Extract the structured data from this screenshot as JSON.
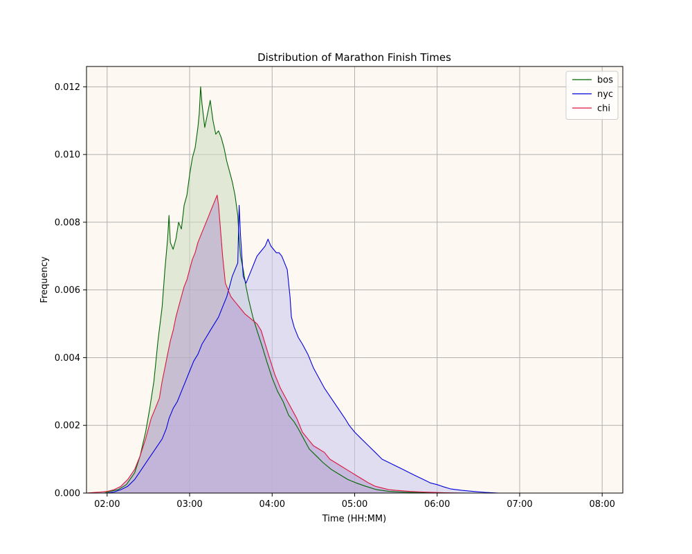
{
  "chart_data": {
    "type": "area",
    "title": "Distribution of Marathon Finish Times",
    "xlabel": "Time (HH:MM)",
    "ylabel": "Frequency",
    "x_unit": "minutes",
    "xlim": [
      105,
      495
    ],
    "ylim": [
      0,
      0.0126
    ],
    "xticks": [
      120,
      180,
      240,
      300,
      360,
      420,
      480
    ],
    "xtick_labels": [
      "02:00",
      "03:00",
      "04:00",
      "05:00",
      "06:00",
      "07:00",
      "08:00"
    ],
    "yticks": [
      0.0,
      0.002,
      0.004,
      0.006,
      0.008,
      0.01,
      0.012
    ],
    "ytick_labels": [
      "0.000",
      "0.002",
      "0.004",
      "0.006",
      "0.008",
      "0.010",
      "0.012"
    ],
    "grid": true,
    "legend_position": "top-right",
    "plot_background": "#fdf8f1",
    "series": [
      {
        "name": "bos",
        "color": "#006400",
        "fill": "#cadbbf",
        "points": [
          [
            105,
            0
          ],
          [
            118,
            0
          ],
          [
            122,
            5e-05
          ],
          [
            128,
            0.0001
          ],
          [
            134,
            0.00025
          ],
          [
            140,
            0.0006
          ],
          [
            144,
            0.0011
          ],
          [
            148,
            0.0018
          ],
          [
            151,
            0.0025
          ],
          [
            154,
            0.0033
          ],
          [
            157,
            0.0045
          ],
          [
            160,
            0.0055
          ],
          [
            162,
            0.0066
          ],
          [
            164,
            0.0075
          ],
          [
            165,
            0.0082
          ],
          [
            166,
            0.0074
          ],
          [
            168,
            0.0072
          ],
          [
            170,
            0.0075
          ],
          [
            172,
            0.008
          ],
          [
            174,
            0.0078
          ],
          [
            176,
            0.0085
          ],
          [
            178,
            0.0088
          ],
          [
            180,
            0.0094
          ],
          [
            182,
            0.0099
          ],
          [
            184,
            0.0102
          ],
          [
            186,
            0.0108
          ],
          [
            187,
            0.0112
          ],
          [
            188,
            0.012
          ],
          [
            189,
            0.0115
          ],
          [
            191,
            0.0108
          ],
          [
            193,
            0.0112
          ],
          [
            195,
            0.0116
          ],
          [
            197,
            0.011
          ],
          [
            199,
            0.0106
          ],
          [
            201,
            0.0107
          ],
          [
            203,
            0.0105
          ],
          [
            205,
            0.0102
          ],
          [
            207,
            0.0098
          ],
          [
            209,
            0.0095
          ],
          [
            211,
            0.0092
          ],
          [
            213,
            0.0088
          ],
          [
            215,
            0.0082
          ],
          [
            216,
            0.0075
          ],
          [
            217,
            0.007
          ],
          [
            219,
            0.0066
          ],
          [
            221,
            0.0061
          ],
          [
            223,
            0.0057
          ],
          [
            226,
            0.0052
          ],
          [
            229,
            0.0048
          ],
          [
            233,
            0.0043
          ],
          [
            236,
            0.0039
          ],
          [
            240,
            0.0034
          ],
          [
            244,
            0.003
          ],
          [
            248,
            0.0027
          ],
          [
            252,
            0.0023
          ],
          [
            256,
            0.0021
          ],
          [
            259,
            0.0019
          ],
          [
            263,
            0.0016
          ],
          [
            267,
            0.0013
          ],
          [
            272,
            0.0011
          ],
          [
            277,
            0.0009
          ],
          [
            283,
            0.0007
          ],
          [
            289,
            0.00055
          ],
          [
            295,
            0.0004
          ],
          [
            301,
            0.0003
          ],
          [
            308,
            0.0002
          ],
          [
            316,
            0.0001
          ],
          [
            325,
            5e-05
          ],
          [
            340,
            2e-05
          ],
          [
            360,
            0
          ],
          [
            495,
            0
          ]
        ]
      },
      {
        "name": "nyc",
        "color": "#0000dd",
        "fill": "#c9c6f1",
        "points": [
          [
            105,
            0
          ],
          [
            120,
            0
          ],
          [
            125,
            3e-05
          ],
          [
            130,
            0.0001
          ],
          [
            135,
            0.0002
          ],
          [
            140,
            0.0004
          ],
          [
            145,
            0.0007
          ],
          [
            150,
            0.001
          ],
          [
            155,
            0.0013
          ],
          [
            160,
            0.0016
          ],
          [
            163,
            0.0019
          ],
          [
            165,
            0.0022
          ],
          [
            168,
            0.0025
          ],
          [
            171,
            0.0027
          ],
          [
            174,
            0.003
          ],
          [
            177,
            0.0033
          ],
          [
            180,
            0.0036
          ],
          [
            183,
            0.0039
          ],
          [
            186,
            0.0041
          ],
          [
            189,
            0.0044
          ],
          [
            192,
            0.0046
          ],
          [
            195,
            0.0048
          ],
          [
            198,
            0.005
          ],
          [
            201,
            0.0052
          ],
          [
            204,
            0.0055
          ],
          [
            207,
            0.0058
          ],
          [
            209,
            0.0061
          ],
          [
            211,
            0.0064
          ],
          [
            213,
            0.0066
          ],
          [
            215,
            0.0068
          ],
          [
            216,
            0.0085
          ],
          [
            217,
            0.0076
          ],
          [
            219,
            0.0064
          ],
          [
            221,
            0.0062
          ],
          [
            223,
            0.0064
          ],
          [
            225,
            0.0066
          ],
          [
            227,
            0.0068
          ],
          [
            229,
            0.007
          ],
          [
            231,
            0.0071
          ],
          [
            233,
            0.0072
          ],
          [
            235,
            0.0073
          ],
          [
            237,
            0.0075
          ],
          [
            239,
            0.0073
          ],
          [
            241,
            0.0072
          ],
          [
            243,
            0.0071
          ],
          [
            245,
            0.0071
          ],
          [
            247,
            0.007
          ],
          [
            249,
            0.0068
          ],
          [
            251,
            0.0066
          ],
          [
            252,
            0.0062
          ],
          [
            253,
            0.0058
          ],
          [
            254,
            0.0052
          ],
          [
            256,
            0.0049
          ],
          [
            259,
            0.0046
          ],
          [
            262,
            0.0044
          ],
          [
            266,
            0.0041
          ],
          [
            270,
            0.0037
          ],
          [
            274,
            0.0034
          ],
          [
            278,
            0.0031
          ],
          [
            283,
            0.0028
          ],
          [
            288,
            0.0025
          ],
          [
            293,
            0.0022
          ],
          [
            296,
            0.002
          ],
          [
            300,
            0.0018
          ],
          [
            305,
            0.0016
          ],
          [
            310,
            0.0014
          ],
          [
            315,
            0.0012
          ],
          [
            320,
            0.001
          ],
          [
            325,
            0.0009
          ],
          [
            330,
            0.0008
          ],
          [
            335,
            0.0007
          ],
          [
            340,
            0.0006
          ],
          [
            345,
            0.0005
          ],
          [
            350,
            0.0004
          ],
          [
            355,
            0.0003
          ],
          [
            360,
            0.00025
          ],
          [
            365,
            0.00018
          ],
          [
            370,
            0.00012
          ],
          [
            378,
            8e-05
          ],
          [
            386,
            5e-05
          ],
          [
            395,
            2e-05
          ],
          [
            405,
            0
          ],
          [
            495,
            0
          ]
        ]
      },
      {
        "name": "chi",
        "color": "#dc143c",
        "fill": "#b59ad0",
        "points": [
          [
            105,
            0
          ],
          [
            115,
            3e-05
          ],
          [
            120,
            5e-05
          ],
          [
            125,
            0.0001
          ],
          [
            130,
            0.0002
          ],
          [
            135,
            0.0004
          ],
          [
            140,
            0.0007
          ],
          [
            144,
            0.0011
          ],
          [
            148,
            0.0016
          ],
          [
            152,
            0.0022
          ],
          [
            155,
            0.0025
          ],
          [
            158,
            0.0028
          ],
          [
            160,
            0.0033
          ],
          [
            162,
            0.0037
          ],
          [
            164,
            0.0041
          ],
          [
            166,
            0.0045
          ],
          [
            168,
            0.0048
          ],
          [
            170,
            0.0052
          ],
          [
            172,
            0.0055
          ],
          [
            174,
            0.0058
          ],
          [
            176,
            0.0061
          ],
          [
            178,
            0.0063
          ],
          [
            180,
            0.0066
          ],
          [
            182,
            0.0069
          ],
          [
            184,
            0.0071
          ],
          [
            186,
            0.0074
          ],
          [
            188,
            0.0076
          ],
          [
            190,
            0.0078
          ],
          [
            192,
            0.008
          ],
          [
            194,
            0.0082
          ],
          [
            196,
            0.0084
          ],
          [
            198,
            0.0086
          ],
          [
            200,
            0.0088
          ],
          [
            201,
            0.0085
          ],
          [
            202,
            0.008
          ],
          [
            204,
            0.007
          ],
          [
            206,
            0.0062
          ],
          [
            208,
            0.006
          ],
          [
            210,
            0.0058
          ],
          [
            212,
            0.0057
          ],
          [
            214,
            0.0056
          ],
          [
            216,
            0.0055
          ],
          [
            218,
            0.0054
          ],
          [
            220,
            0.0053
          ],
          [
            223,
            0.0052
          ],
          [
            226,
            0.0051
          ],
          [
            229,
            0.005
          ],
          [
            232,
            0.0048
          ],
          [
            235,
            0.0044
          ],
          [
            238,
            0.004
          ],
          [
            242,
            0.0035
          ],
          [
            246,
            0.0031
          ],
          [
            250,
            0.0028
          ],
          [
            254,
            0.0025
          ],
          [
            258,
            0.0022
          ],
          [
            262,
            0.0018
          ],
          [
            266,
            0.0016
          ],
          [
            270,
            0.0014
          ],
          [
            274,
            0.0013
          ],
          [
            278,
            0.0012
          ],
          [
            282,
            0.001
          ],
          [
            286,
            0.0009
          ],
          [
            290,
            0.0008
          ],
          [
            294,
            0.0007
          ],
          [
            298,
            0.0006
          ],
          [
            302,
            0.0005
          ],
          [
            306,
            0.0004
          ],
          [
            310,
            0.0003
          ],
          [
            315,
            0.0002
          ],
          [
            320,
            0.00015
          ],
          [
            325,
            0.0001
          ],
          [
            330,
            8e-05
          ],
          [
            340,
            5e-05
          ],
          [
            350,
            3e-05
          ],
          [
            365,
            1e-05
          ],
          [
            380,
            0
          ],
          [
            495,
            0
          ]
        ]
      }
    ]
  }
}
